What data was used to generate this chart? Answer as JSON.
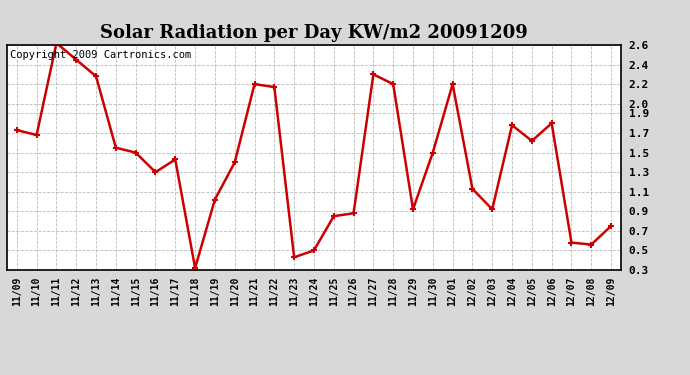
{
  "title": "Solar Radiation per Day KW/m2 20091209",
  "copyright_text": "Copyright 2009 Cartronics.com",
  "labels": [
    "11/09",
    "11/10",
    "11/11",
    "11/12",
    "11/13",
    "11/14",
    "11/15",
    "11/16",
    "11/17",
    "11/18",
    "11/19",
    "11/20",
    "11/21",
    "11/22",
    "11/23",
    "11/24",
    "11/25",
    "11/26",
    "11/27",
    "11/28",
    "11/29",
    "11/30",
    "12/01",
    "12/02",
    "12/03",
    "12/04",
    "12/05",
    "12/06",
    "12/07",
    "12/08",
    "12/09"
  ],
  "values": [
    1.73,
    1.68,
    2.62,
    2.45,
    2.28,
    1.55,
    1.5,
    1.3,
    1.43,
    0.32,
    1.02,
    1.4,
    2.2,
    2.17,
    0.43,
    0.5,
    0.85,
    0.88,
    2.3,
    2.2,
    0.92,
    1.5,
    2.2,
    1.13,
    0.92,
    1.78,
    1.62,
    1.8,
    0.58,
    0.56,
    0.75
  ],
  "line_color": "#cc0000",
  "marker": "+",
  "marker_size": 5,
  "line_width": 1.8,
  "ylim": [
    0.3,
    2.6
  ],
  "yticks": [
    0.3,
    0.5,
    0.7,
    0.9,
    1.1,
    1.3,
    1.5,
    1.7,
    1.9,
    2.0,
    2.2,
    2.4,
    2.6
  ],
  "plot_bg_color": "#ffffff",
  "fig_bg_color": "#d8d8d8",
  "grid_color": "#aaaaaa",
  "title_fontsize": 13,
  "copyright_fontsize": 7.5,
  "tick_fontsize": 7,
  "ytick_fontsize": 8
}
